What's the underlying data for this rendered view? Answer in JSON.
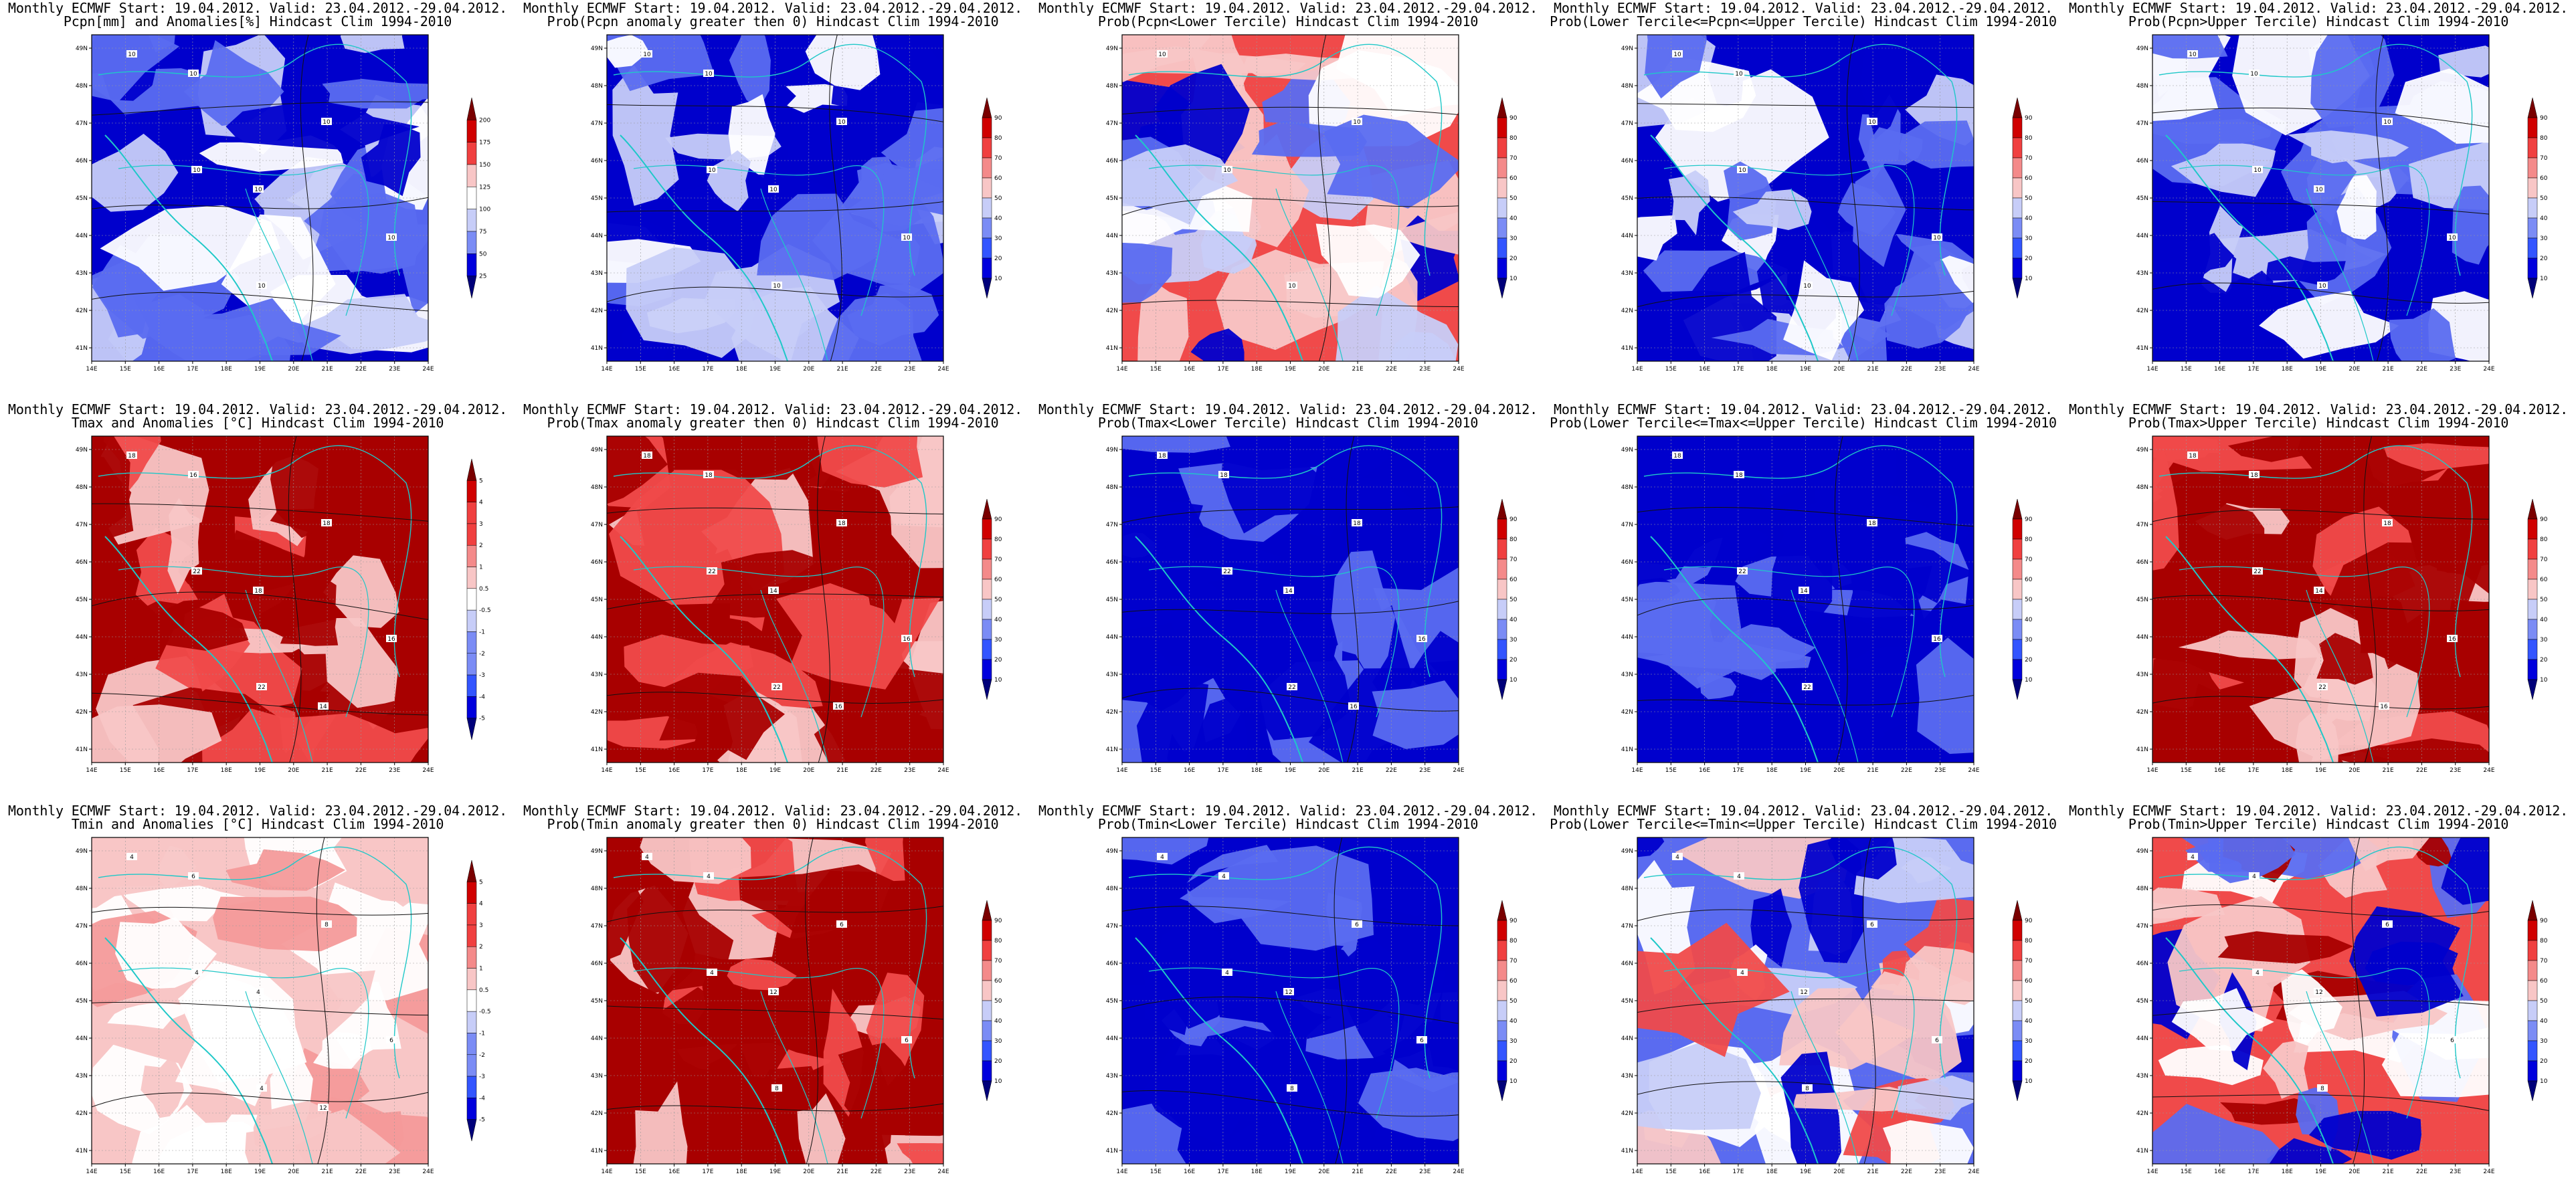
{
  "figure": {
    "header": "Monthly ECMWF Start: 19.04.2012. Valid: 23.04.2012.-29.04.2012.",
    "lon_ticks": [
      "14E",
      "15E",
      "16E",
      "17E",
      "18E",
      "19E",
      "20E",
      "21E",
      "22E",
      "23E",
      "24E"
    ],
    "lat_ticks": [
      "49N",
      "48N",
      "47N",
      "46N",
      "45N",
      "44N",
      "43N",
      "42N",
      "41N"
    ],
    "colors": {
      "anomaly_blue_dark": "#0000cc",
      "anomaly_blue_mid": "#5a6bf0",
      "anomaly_blue_light": "#c7cdf8",
      "neutral": "#ffffff",
      "anomaly_red_light": "#f8c6c6",
      "anomaly_red_mid": "#f04a4a",
      "anomaly_red_dark": "#a80000",
      "coastline": "#1fc8c8",
      "contour": "#111111"
    }
  },
  "panels": [
    {
      "subtitle": "Pcpn[mm] and Anomalies[%] Hindcast Clim 1994-2010",
      "scheme": "blue",
      "levels": [
        "25",
        "50",
        "75",
        "100",
        "125",
        "150",
        "175",
        "200"
      ],
      "labels": [
        "10",
        "10",
        "10",
        "10",
        "10",
        "10",
        "10"
      ]
    },
    {
      "subtitle": "Prob(Pcpn anomaly greater then 0) Hindcast Clim 1994-2010",
      "scheme": "blue",
      "levels": [
        "10",
        "20",
        "30",
        "40",
        "50",
        "60",
        "70",
        "80",
        "90"
      ],
      "labels": [
        "10",
        "10",
        "10",
        "10",
        "10",
        "10",
        "10"
      ]
    },
    {
      "subtitle": "Prob(Pcpn<Lower Tercile) Hindcast Clim 1994-2010",
      "scheme": "mixed",
      "levels": [
        "10",
        "20",
        "30",
        "40",
        "50",
        "60",
        "70",
        "80",
        "90"
      ],
      "labels": [
        "10",
        "10",
        "10",
        "10"
      ]
    },
    {
      "subtitle": "Prob(Lower Tercile<=Pcpn<=Upper Tercile) Hindcast Clim 1994-2010",
      "scheme": "blue",
      "levels": [
        "10",
        "20",
        "30",
        "40",
        "50",
        "60",
        "70",
        "80",
        "90"
      ],
      "labels": [
        "10",
        "10",
        "10",
        "10",
        "10",
        "10"
      ]
    },
    {
      "subtitle": "Prob(Pcpn>Upper Tercile) Hindcast Clim 1994-2010",
      "scheme": "blue",
      "levels": [
        "10",
        "20",
        "30",
        "40",
        "50",
        "60",
        "70",
        "80",
        "90"
      ],
      "labels": [
        "10",
        "10",
        "10",
        "10",
        "10",
        "10",
        "10"
      ]
    },
    {
      "subtitle": "Tmax and Anomalies [°C] Hindcast Clim 1994-2010",
      "scheme": "red",
      "levels": [
        "-5",
        "-4",
        "-3",
        "-2",
        "-1",
        "-0.5",
        "0.5",
        "1",
        "2",
        "3",
        "4",
        "5"
      ],
      "labels": [
        "18",
        "22",
        "22",
        "18",
        "16",
        "16",
        "18",
        "14"
      ]
    },
    {
      "subtitle": "Prob(Tmax anomaly greater then 0) Hindcast Clim 1994-2010",
      "scheme": "red",
      "levels": [
        "10",
        "20",
        "30",
        "40",
        "50",
        "60",
        "70",
        "80",
        "90"
      ],
      "labels": [
        "18",
        "22",
        "22",
        "18",
        "16",
        "18",
        "14",
        "16"
      ]
    },
    {
      "subtitle": "Prob(Tmax<Lower Tercile) Hindcast Clim 1994-2010",
      "scheme": "navy",
      "levels": [
        "10",
        "20",
        "30",
        "40",
        "50",
        "60",
        "70",
        "80",
        "90"
      ],
      "labels": [
        "18",
        "22",
        "22",
        "18",
        "16",
        "18",
        "14",
        "16"
      ]
    },
    {
      "subtitle": "Prob(Lower Tercile<=Tmax<=Upper Tercile) Hindcast Clim 1994-2010",
      "scheme": "navy",
      "levels": [
        "10",
        "20",
        "30",
        "40",
        "50",
        "60",
        "70",
        "80",
        "90"
      ],
      "labels": [
        "18",
        "22",
        "22",
        "18",
        "16",
        "18",
        "14"
      ]
    },
    {
      "subtitle": "Prob(Tmax>Upper Tercile) Hindcast Clim 1994-2010",
      "scheme": "red",
      "levels": [
        "10",
        "20",
        "30",
        "40",
        "50",
        "60",
        "70",
        "80",
        "90"
      ],
      "labels": [
        "18",
        "22",
        "22",
        "18",
        "16",
        "18",
        "14",
        "16"
      ]
    },
    {
      "subtitle": "Tmin and Anomalies [°C] Hindcast Clim 1994-2010",
      "scheme": "lightred",
      "levels": [
        "-5",
        "-4",
        "-3",
        "-2",
        "-1",
        "-0.5",
        "0.5",
        "1",
        "2",
        "3",
        "4",
        "5"
      ],
      "labels": [
        "4",
        "4",
        "4",
        "8",
        "6",
        "6",
        "4",
        "12"
      ]
    },
    {
      "subtitle": "Prob(Tmin anomaly greater then 0) Hindcast Clim 1994-2010",
      "scheme": "red",
      "levels": [
        "10",
        "20",
        "30",
        "40",
        "50",
        "60",
        "70",
        "80",
        "90"
      ],
      "labels": [
        "4",
        "4",
        "8",
        "6",
        "6",
        "4",
        "12"
      ]
    },
    {
      "subtitle": "Prob(Tmin<Lower Tercile) Hindcast Clim 1994-2010",
      "scheme": "navy",
      "levels": [
        "10",
        "20",
        "30",
        "40",
        "50",
        "60",
        "70",
        "80",
        "90"
      ],
      "labels": [
        "4",
        "4",
        "8",
        "6",
        "6",
        "4",
        "12"
      ]
    },
    {
      "subtitle": "Prob(Lower Tercile<=Tmin<=Upper Tercile) Hindcast Clim 1994-2010",
      "scheme": "mixedblue",
      "levels": [
        "10",
        "20",
        "30",
        "40",
        "50",
        "60",
        "70",
        "80",
        "90"
      ],
      "labels": [
        "4",
        "4",
        "8",
        "6",
        "6",
        "4",
        "12"
      ]
    },
    {
      "subtitle": "Prob(Tmin>Upper Tercile) Hindcast Clim 1994-2010",
      "scheme": "mixedred",
      "levels": [
        "10",
        "20",
        "30",
        "40",
        "50",
        "60",
        "70",
        "80",
        "90"
      ],
      "labels": [
        "4",
        "4",
        "8",
        "6",
        "6",
        "4",
        "12"
      ]
    }
  ]
}
